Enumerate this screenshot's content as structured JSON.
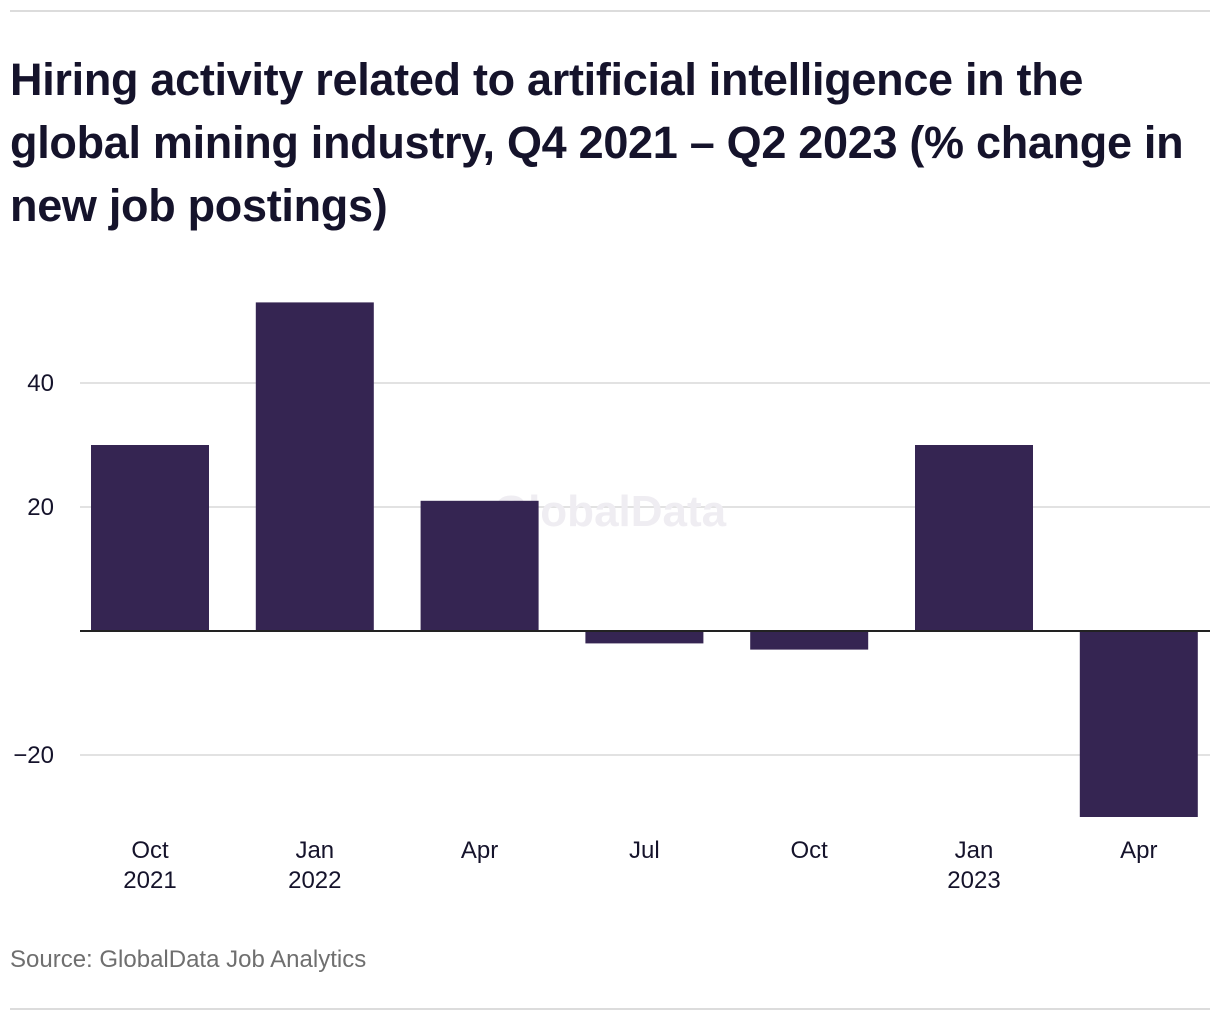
{
  "title": "Hiring activity related to artificial intelligence in the global mining industry, Q4 2021 – Q2 2023 (% change in new job postings)",
  "source": "Source: GlobalData Job Analytics",
  "watermark": "GlobalData",
  "colors": {
    "bar": "#352552",
    "grid": "#d9d9d9",
    "zero_line": "#222222",
    "text": "#15132b",
    "muted": "#6f6f6f",
    "watermark": "#efedf2"
  },
  "chart_data": {
    "type": "bar",
    "title": "Hiring activity related to artificial intelligence in the global mining industry, Q4 2021 – Q2 2023 (% change in new job postings)",
    "xlabel": "",
    "ylabel": "",
    "categories": [
      {
        "line1": "Oct",
        "line2": "2021"
      },
      {
        "line1": "Jan",
        "line2": "2022"
      },
      {
        "line1": "Apr",
        "line2": ""
      },
      {
        "line1": "Jul",
        "line2": ""
      },
      {
        "line1": "Oct",
        "line2": ""
      },
      {
        "line1": "Jan",
        "line2": "2023"
      },
      {
        "line1": "Apr",
        "line2": ""
      }
    ],
    "values": [
      30,
      53,
      21,
      -2,
      -3,
      30,
      -30
    ],
    "ylim": [
      -30,
      53
    ],
    "yticks": [
      {
        "value": 40,
        "label": "40"
      },
      {
        "value": 20,
        "label": "20"
      },
      {
        "value": -20,
        "label": "−20"
      }
    ],
    "grid": true
  }
}
